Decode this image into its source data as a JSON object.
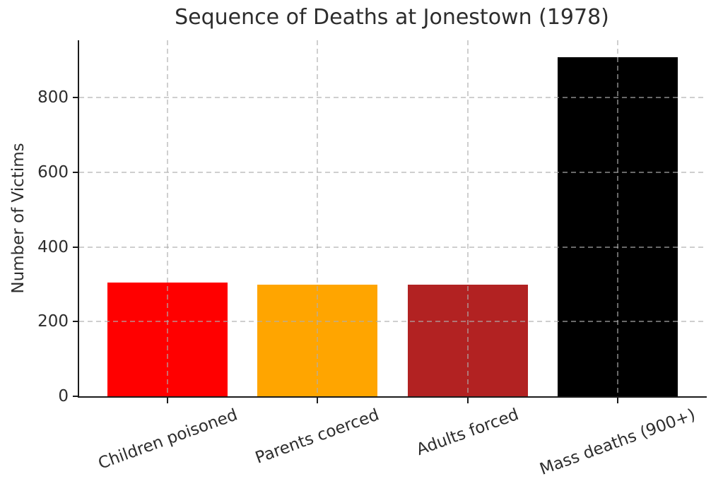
{
  "figure": {
    "background": "#ffffff",
    "text_color": "#2d2d2d",
    "spine_color": "#1c1c1c",
    "grid_color": "#c9c9c9"
  },
  "chart_data": {
    "type": "bar",
    "title": "Sequence of Deaths at Jonestown (1978)",
    "xlabel": "",
    "ylabel": "Number of Victims",
    "categories": [
      "Children poisoned",
      "Parents coerced",
      "Adults forced",
      "Mass deaths (900+)"
    ],
    "values": [
      304,
      300,
      300,
      909
    ],
    "bar_colors": [
      "#ff0000",
      "#ffa500",
      "#b22222",
      "#000000"
    ],
    "yticks": [
      0,
      200,
      400,
      600,
      800
    ],
    "ylim": [
      0,
      954
    ],
    "grid": {
      "style": "dashed",
      "axes": "both",
      "over_bars": true
    },
    "legend_position": "none",
    "xtick_rotation_deg": 20,
    "spines": [
      "left",
      "bottom"
    ]
  }
}
